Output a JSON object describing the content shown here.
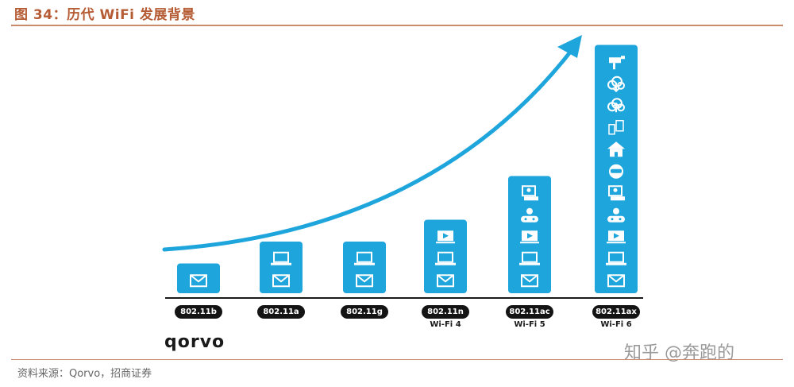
{
  "figure": {
    "title": "图 34：历代 WiFi 发展背景"
  },
  "colors": {
    "accent": "#1ea6dc",
    "title": "#b65c35",
    "pill": "#141414"
  },
  "generations": [
    {
      "standard": "802.11b",
      "name": "",
      "icons": [
        "mail-icon"
      ]
    },
    {
      "standard": "802.11a",
      "name": "",
      "icons": [
        "mail-icon",
        "laptop-icon"
      ]
    },
    {
      "standard": "802.11g",
      "name": "",
      "icons": [
        "mail-icon",
        "laptop-icon"
      ]
    },
    {
      "standard": "802.11n",
      "name": "Wi-Fi 4",
      "icons": [
        "mail-icon",
        "laptop-icon",
        "video-icon"
      ]
    },
    {
      "standard": "802.11ac",
      "name": "Wi-Fi 5",
      "icons": [
        "mail-icon",
        "laptop-icon",
        "video-icon",
        "gaming-icon",
        "video-call-icon"
      ]
    },
    {
      "standard": "802.11ax",
      "name": "Wi-Fi 6",
      "icons": [
        "mail-icon",
        "laptop-icon",
        "video-icon",
        "gaming-icon",
        "video-call-icon",
        "vr-icon",
        "smart-home-icon",
        "devices-icon",
        "cloud-upload-icon",
        "cloud-download-icon",
        "camera-icon"
      ]
    }
  ],
  "brand": "qorvo",
  "watermark": "知乎 @奔跑的",
  "source": "资料来源：Qorvo，招商证券"
}
